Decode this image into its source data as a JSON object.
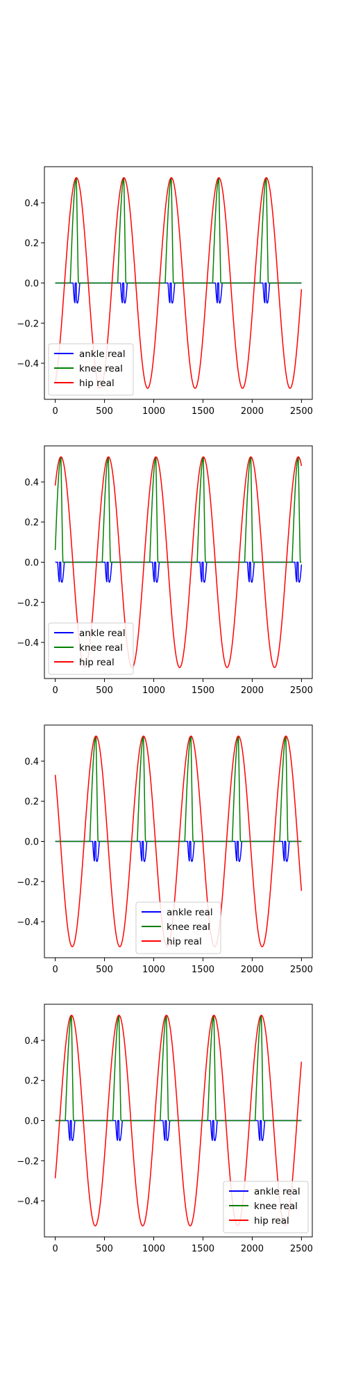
{
  "chart_data": [
    {
      "type": "line",
      "title": "",
      "xlabel": "",
      "ylabel": "",
      "xlim": [
        -110,
        2610
      ],
      "ylim": [
        -0.58,
        0.58
      ],
      "xticks": [
        0,
        500,
        1000,
        1500,
        2000,
        2500
      ],
      "yticks": [
        -0.4,
        -0.2,
        0.0,
        0.2,
        0.4
      ],
      "legend_position": "lower-left",
      "series": [
        {
          "name": "ankle real",
          "color": "#0000ff",
          "shape": "ankle",
          "phase": 215
        },
        {
          "name": "knee real",
          "color": "#008000",
          "shape": "knee",
          "phase": 215
        },
        {
          "name": "hip real",
          "color": "#ff0000",
          "shape": "hip",
          "phase": 215
        }
      ]
    },
    {
      "type": "line",
      "title": "",
      "xlabel": "",
      "ylabel": "",
      "xlim": [
        -110,
        2610
      ],
      "ylim": [
        -0.58,
        0.58
      ],
      "xticks": [
        0,
        500,
        1000,
        1500,
        2000,
        2500
      ],
      "yticks": [
        -0.4,
        -0.2,
        0.0,
        0.2,
        0.4
      ],
      "legend_position": "lower-left",
      "series": [
        {
          "name": "ankle real",
          "color": "#0000ff",
          "shape": "ankle",
          "phase": 58
        },
        {
          "name": "knee real",
          "color": "#008000",
          "shape": "knee",
          "phase": 58
        },
        {
          "name": "hip real",
          "color": "#ff0000",
          "shape": "hip",
          "phase": 58
        }
      ]
    },
    {
      "type": "line",
      "title": "",
      "xlabel": "",
      "ylabel": "",
      "xlim": [
        -110,
        2610
      ],
      "ylim": [
        -0.58,
        0.58
      ],
      "xticks": [
        0,
        500,
        1000,
        1500,
        2000,
        2500
      ],
      "yticks": [
        -0.4,
        -0.2,
        0.0,
        0.2,
        0.4
      ],
      "legend_position": "lower-center",
      "series": [
        {
          "name": "ankle real",
          "color": "#0000ff",
          "shape": "ankle",
          "phase": -68
        },
        {
          "name": "knee real",
          "color": "#008000",
          "shape": "knee",
          "phase": -68
        },
        {
          "name": "hip real",
          "color": "#ff0000",
          "shape": "hip",
          "phase": -68
        }
      ]
    },
    {
      "type": "line",
      "title": "",
      "xlabel": "",
      "ylabel": "",
      "xlim": [
        -110,
        2610
      ],
      "ylim": [
        -0.58,
        0.58
      ],
      "xticks": [
        0,
        500,
        1000,
        1500,
        2000,
        2500
      ],
      "yticks": [
        -0.4,
        -0.2,
        0.0,
        0.2,
        0.4
      ],
      "legend_position": "lower-right",
      "series": [
        {
          "name": "ankle real",
          "color": "#0000ff",
          "shape": "ankle",
          "phase": 165
        },
        {
          "name": "knee real",
          "color": "#008000",
          "shape": "knee",
          "phase": 165
        },
        {
          "name": "hip real",
          "color": "#ff0000",
          "shape": "hip",
          "phase": 165
        }
      ]
    }
  ]
}
